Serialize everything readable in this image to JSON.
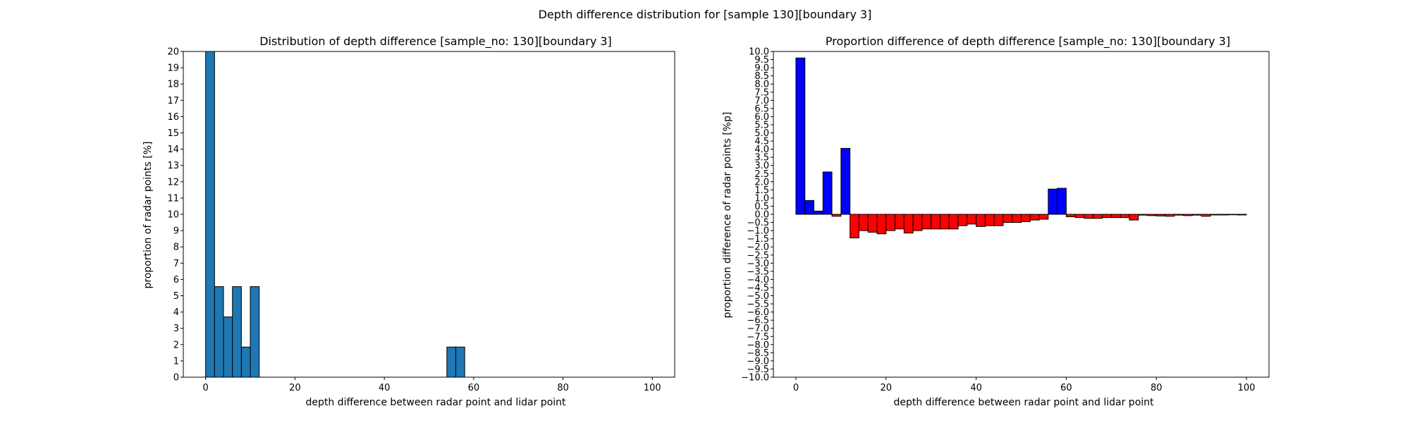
{
  "figure": {
    "suptitle": "Depth difference distribution for [sample 130][boundary 3]"
  },
  "chart_data": [
    {
      "type": "bar",
      "title": "Distribution of depth difference [sample_no: 130][boundary 3]",
      "xlabel": "depth difference between radar point and lidar point",
      "ylabel": "proportion of radar points [%]",
      "xlim": [
        -5,
        105
      ],
      "ylim": [
        0,
        20
      ],
      "xticks": [
        0,
        20,
        40,
        60,
        80,
        100
      ],
      "yticks": [
        0,
        1,
        2,
        3,
        4,
        5,
        6,
        7,
        8,
        9,
        10,
        11,
        12,
        13,
        14,
        15,
        16,
        17,
        18,
        19,
        20
      ],
      "bin_width": 2,
      "bin_starts": [
        0,
        2,
        4,
        6,
        8,
        10,
        54,
        56
      ],
      "values": [
        20,
        5.56,
        3.7,
        5.56,
        1.85,
        5.56,
        1.85,
        1.85
      ],
      "bar_color": "#1f77b4",
      "edge_color": "#000000",
      "grid": false
    },
    {
      "type": "bar",
      "title": "Proportion difference of depth difference [sample_no: 130][boundary 3]",
      "xlabel": "depth difference between radar point and lidar point",
      "ylabel": "proportion difference of radar points [%p]",
      "xlim": [
        -5,
        105
      ],
      "ylim": [
        -10,
        10
      ],
      "xticks": [
        0,
        20,
        40,
        60,
        80,
        100
      ],
      "yticks": [
        -10.0,
        -9.5,
        -9.0,
        -8.5,
        -8.0,
        -7.5,
        -7.0,
        -6.5,
        -6.0,
        -5.5,
        -5.0,
        -4.5,
        -4.0,
        -3.5,
        -3.0,
        -2.5,
        -2.0,
        -1.5,
        -1.0,
        -0.5,
        0.0,
        0.5,
        1.0,
        1.5,
        2.0,
        2.5,
        3.0,
        3.5,
        4.0,
        4.5,
        5.0,
        5.5,
        6.0,
        6.5,
        7.0,
        7.5,
        8.0,
        8.5,
        9.0,
        9.5,
        10.0
      ],
      "bin_width": 2,
      "bin_starts": [
        0,
        2,
        4,
        6,
        8,
        10,
        12,
        14,
        16,
        18,
        20,
        22,
        24,
        26,
        28,
        30,
        32,
        34,
        36,
        38,
        40,
        42,
        44,
        46,
        48,
        50,
        52,
        54,
        56,
        58,
        60,
        62,
        64,
        66,
        68,
        70,
        72,
        74,
        76,
        78,
        80,
        82,
        84,
        86,
        88,
        90,
        92,
        94,
        96,
        98
      ],
      "values": [
        9.6,
        0.85,
        0.2,
        2.6,
        -0.12,
        4.05,
        -1.45,
        -1.0,
        -1.1,
        -1.2,
        -1.0,
        -0.9,
        -1.15,
        -1.0,
        -0.9,
        -0.9,
        -0.9,
        -0.9,
        -0.7,
        -0.6,
        -0.75,
        -0.7,
        -0.7,
        -0.5,
        -0.5,
        -0.45,
        -0.35,
        -0.3,
        1.55,
        1.6,
        -0.15,
        -0.2,
        -0.25,
        -0.25,
        -0.2,
        -0.2,
        -0.2,
        -0.35,
        -0.05,
        -0.08,
        -0.1,
        -0.12,
        -0.05,
        -0.08,
        -0.05,
        -0.12,
        -0.04,
        -0.04,
        -0.03,
        -0.04
      ],
      "positive_color": "#0000ff",
      "negative_color": "#ff0000",
      "edge_color": "#000000",
      "grid": false
    }
  ]
}
